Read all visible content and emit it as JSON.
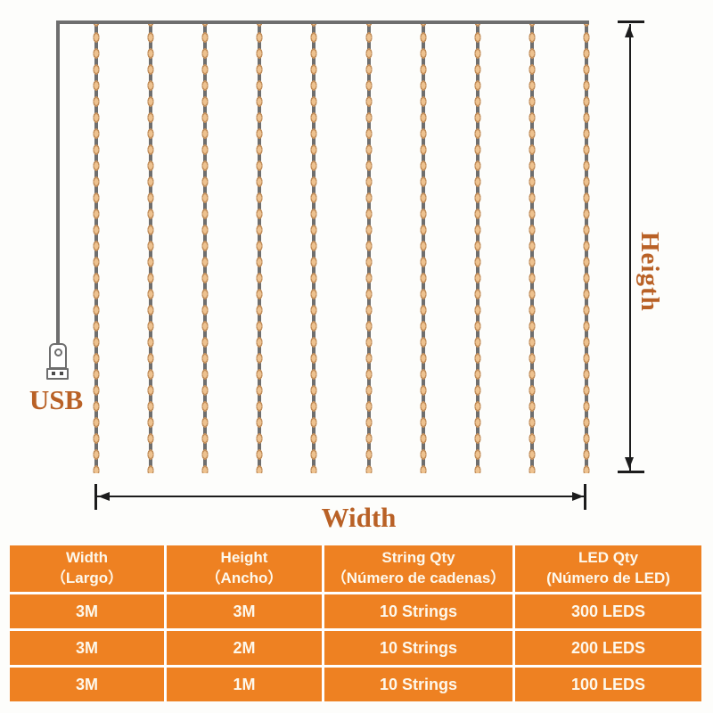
{
  "product_diagram": {
    "labels": {
      "usb": "USB",
      "width": "Width",
      "height": "Heigth"
    },
    "curtain": {
      "string_count": 10,
      "beads_per_string": 28
    }
  },
  "spec_table": {
    "headers": [
      {
        "title": "Width",
        "subtitle": "（Largo）"
      },
      {
        "title": "Height",
        "subtitle": "（Ancho）"
      },
      {
        "title": "String Qty",
        "subtitle": "（Número de cadenas）"
      },
      {
        "title": "LED Qty",
        "subtitle": "(Número de LED)"
      }
    ],
    "rows": [
      [
        "3M",
        "3M",
        "10 Strings",
        "300 LEDS"
      ],
      [
        "3M",
        "2M",
        "10 Strings",
        "200 LEDS"
      ],
      [
        "3M",
        "1M",
        "10 Strings",
        "100 LEDS"
      ]
    ]
  },
  "colors": {
    "table_orange": "#ee8122",
    "table_text": "#fdf8ec",
    "label_orange": "#b96126",
    "string_gray": "#6e6e6e",
    "bead_fill": "#eec28f",
    "bead_border": "#c3905d",
    "dimension_line": "#1c1c1c"
  }
}
